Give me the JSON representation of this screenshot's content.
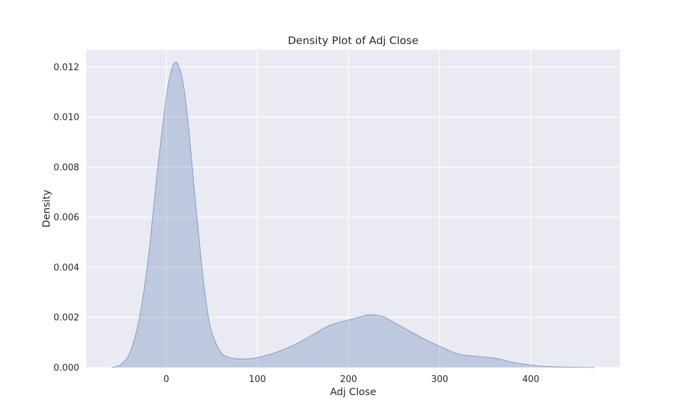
{
  "chart_data": {
    "type": "area",
    "title": "Density Plot of Adj Close",
    "xlabel": "Adj Close",
    "ylabel": "Density",
    "xlim": [
      -88,
      498
    ],
    "ylim": [
      0,
      0.0127
    ],
    "grid": true,
    "x_ticks": [
      0,
      100,
      200,
      300,
      400
    ],
    "x_tick_labels": [
      "0",
      "100",
      "200",
      "300",
      "400"
    ],
    "y_ticks": [
      0,
      0.002,
      0.004,
      0.006,
      0.008,
      0.01,
      0.012
    ],
    "y_tick_labels": [
      "0.000",
      "0.002",
      "0.004",
      "0.006",
      "0.008",
      "0.010",
      "0.012"
    ],
    "series": [
      {
        "x": [
          -60,
          -50,
          -40,
          -30,
          -20,
          -10,
          0,
          5,
          10,
          15,
          20,
          25,
          30,
          35,
          40,
          45,
          50,
          60,
          70,
          80,
          90,
          100,
          120,
          140,
          160,
          180,
          200,
          210,
          220,
          230,
          240,
          250,
          260,
          280,
          300,
          320,
          340,
          360,
          380,
          400,
          420,
          440,
          470
        ],
        "y": [
          0.0,
          0.00012,
          0.0006,
          0.0019,
          0.0043,
          0.0078,
          0.0108,
          0.0118,
          0.0122,
          0.0119,
          0.011,
          0.0094,
          0.0074,
          0.0055,
          0.0037,
          0.0023,
          0.0014,
          0.0006,
          0.0004,
          0.00035,
          0.00035,
          0.0004,
          0.0006,
          0.0009,
          0.0013,
          0.0017,
          0.0019,
          0.002,
          0.0021,
          0.0021,
          0.002,
          0.0018,
          0.0016,
          0.0012,
          0.00085,
          0.00055,
          0.00045,
          0.00038,
          0.00022,
          0.0001,
          4e-05,
          2e-05,
          0.0
        ]
      }
    ],
    "colors": {
      "fill": "#4c72b0",
      "fill_opacity": 0.28,
      "line": "#4c72b0",
      "background": "#eaeaf2",
      "grid": "#ffffff"
    }
  }
}
